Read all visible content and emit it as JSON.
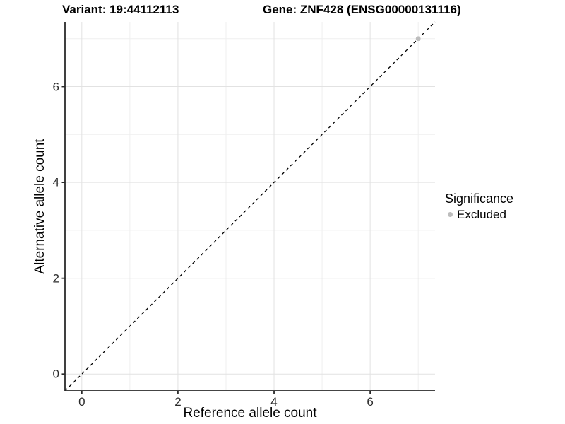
{
  "header": {
    "variant_title": "Variant: 19:44112113",
    "gene_title": "Gene: ZNF428 (ENSG00000131116)"
  },
  "chart_data": {
    "type": "scatter",
    "title": "Variant: 19:44112113    Gene: ZNF428 (ENSG00000131116)",
    "xlabel": "Reference allele count",
    "ylabel": "Alternative allele count",
    "xlim": [
      -0.35,
      7.35
    ],
    "ylim": [
      -0.35,
      7.35
    ],
    "x_ticks": [
      0,
      2,
      4,
      6
    ],
    "y_ticks": [
      0,
      2,
      4,
      6
    ],
    "x_minor_ticks": [
      1,
      3,
      5,
      7
    ],
    "y_minor_ticks": [
      1,
      3,
      5,
      7
    ],
    "grid": "major+minor",
    "reference_line": {
      "kind": "identity y=x",
      "style": "dashed",
      "color": "#000000"
    },
    "series": [
      {
        "name": "Excluded",
        "color": "#bdbdbd",
        "points": [
          {
            "x": 7,
            "y": 7
          }
        ]
      }
    ],
    "legend": {
      "title": "Significance",
      "position": "right",
      "items": [
        {
          "label": "Excluded",
          "color": "#bdbdbd",
          "marker": "dot"
        }
      ]
    },
    "colors": {
      "background": "#ffffff",
      "grid_major": "#e2e2e2",
      "grid_minor": "#efefef",
      "axis": "#2a2a2a",
      "tick_text": "#2a2a2a"
    }
  }
}
